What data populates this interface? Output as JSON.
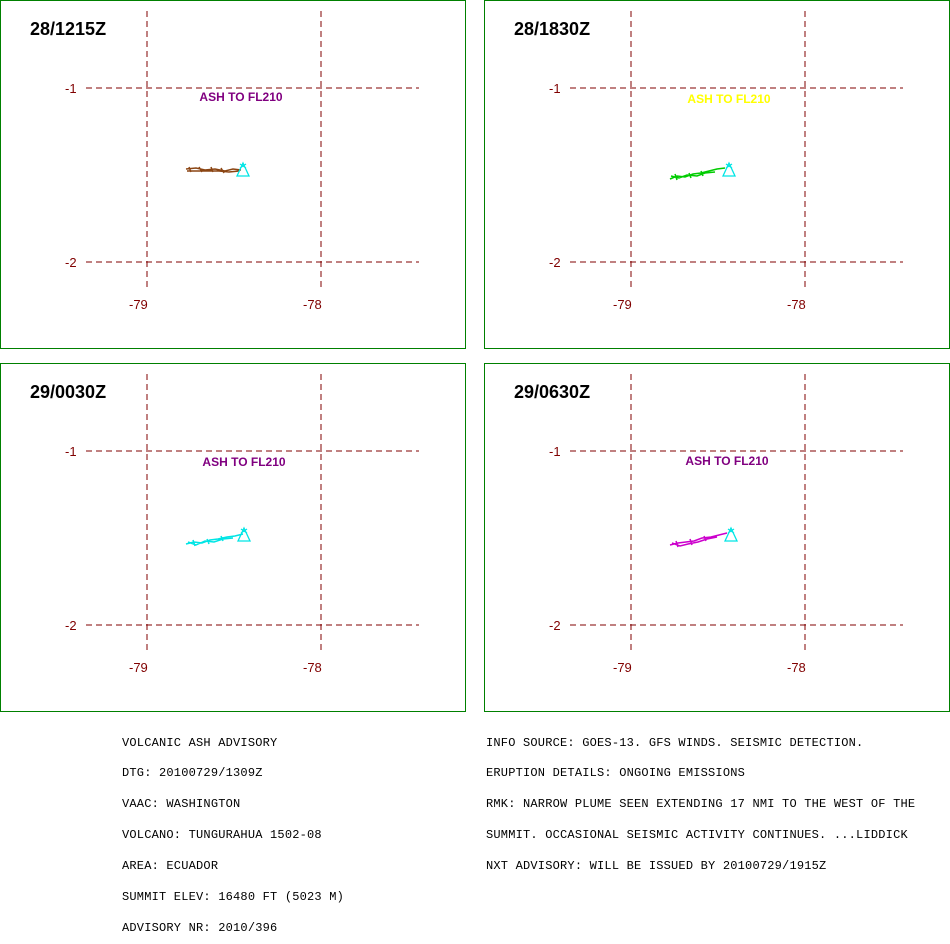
{
  "panels": [
    {
      "time": "28/1215Z",
      "ash_label": "ASH TO FL210",
      "ash_color": "#800080",
      "plume_color": "#8b4513"
    },
    {
      "time": "28/1830Z",
      "ash_label": "ASH TO FL210",
      "ash_color": "#ffff00",
      "plume_color": "#00cc00"
    },
    {
      "time": "29/0030Z",
      "ash_label": "ASH TO FL210",
      "ash_color": "#800080",
      "plume_color": "#00e5e5"
    },
    {
      "time": "29/0630Z",
      "ash_label": "ASH TO FL210",
      "ash_color": "#800080",
      "plume_color": "#cc00cc"
    }
  ],
  "grid": {
    "lat_labels": [
      "-1",
      "-2"
    ],
    "lon_labels": [
      "-79",
      "-78"
    ],
    "grid_color": "#800000",
    "volcano_color": "#00e5e5"
  },
  "advisory_left": [
    "VOLCANIC ASH ADVISORY",
    "DTG: 20100729/1309Z",
    "VAAC: WASHINGTON",
    "VOLCANO: TUNGURAHUA 1502-08",
    "AREA: ECUADOR",
    "SUMMIT ELEV: 16480 FT (5023 M)",
    "ADVISORY NR: 2010/396"
  ],
  "advisory_right": [
    "INFO SOURCE: GOES-13. GFS WINDS. SEISMIC DETECTION.",
    "ERUPTION DETAILS: ONGOING EMISSIONS",
    "RMK: NARROW PLUME SEEN EXTENDING 17 NMI TO THE WEST OF THE",
    "SUMMIT. OCCASIONAL SEISMIC ACTIVITY CONTINUES. ...LIDDICK",
    "NXT ADVISORY: WILL BE ISSUED BY 20100729/1915Z"
  ]
}
